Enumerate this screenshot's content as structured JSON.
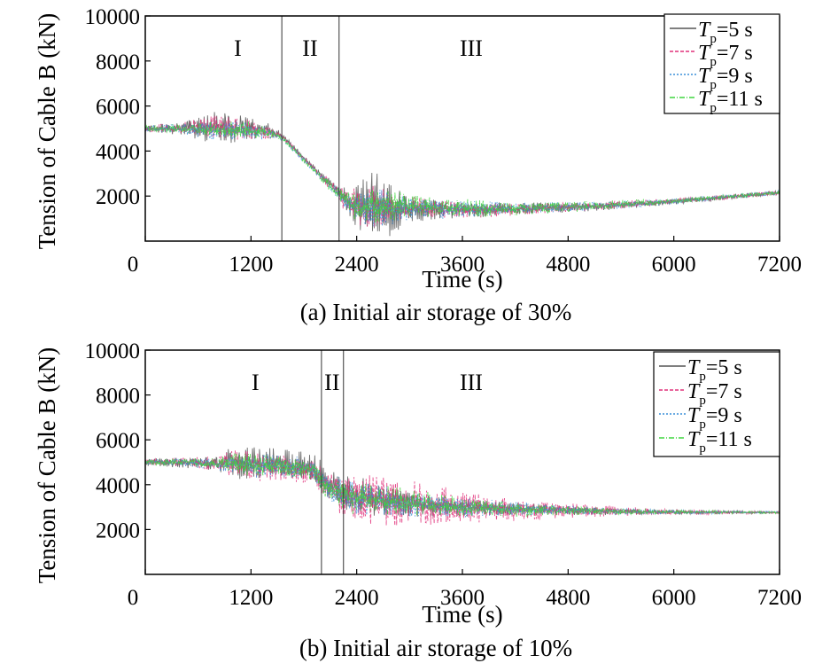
{
  "chart_data": [
    {
      "type": "line",
      "caption": "(a) Initial air storage of 30%",
      "xlabel": "Time (s)",
      "ylabel": "Tension of Cable B (kN)",
      "xlim": [
        0,
        7200
      ],
      "ylim": [
        0,
        10000
      ],
      "xticks": [
        0,
        1200,
        2400,
        3600,
        4800,
        6000,
        7200
      ],
      "yticks": [
        2000,
        4000,
        6000,
        8000,
        10000
      ],
      "grid": false,
      "legend_position": "top-right",
      "boundaries": [
        1550,
        2200
      ],
      "regions": [
        {
          "label": "I",
          "x": 1050
        },
        {
          "label": "II",
          "x": 1870
        },
        {
          "label": "III",
          "x": 3700
        }
      ],
      "series": [
        {
          "name": "T",
          "sub": "p",
          "suffix": "=5 s",
          "color": "#555555",
          "dash": "",
          "x": [
            0,
            400,
            800,
            1200,
            1400,
            1550,
            1800,
            2000,
            2200,
            2300,
            2400,
            2600,
            2800,
            3000,
            3600,
            4200,
            4800,
            5400,
            6000,
            6600,
            7200
          ],
          "y": [
            5000,
            5000,
            5100,
            5000,
            4900,
            4700,
            3700,
            2900,
            2200,
            1700,
            1500,
            1600,
            1500,
            1450,
            1400,
            1420,
            1480,
            1600,
            1750,
            1950,
            2150
          ],
          "amp": [
            150,
            250,
            700,
            500,
            300,
            100,
            100,
            150,
            300,
            700,
            900,
            1500,
            1100,
            500,
            350,
            250,
            200,
            150,
            120,
            100,
            80
          ]
        },
        {
          "name": "T",
          "sub": "p",
          "suffix": "=7 s",
          "color": "#e0307a",
          "dash": "4,2",
          "x": [
            0,
            400,
            800,
            1200,
            1400,
            1550,
            1800,
            2000,
            2200,
            2300,
            2400,
            2600,
            2800,
            3000,
            3600,
            4200,
            4800,
            5400,
            6000,
            6600,
            7200
          ],
          "y": [
            5000,
            5000,
            5050,
            4950,
            4850,
            4650,
            3650,
            2850,
            2150,
            1700,
            1500,
            1550,
            1500,
            1450,
            1400,
            1430,
            1500,
            1620,
            1760,
            1960,
            2150
          ],
          "amp": [
            140,
            220,
            550,
            450,
            280,
            100,
            100,
            150,
            280,
            600,
            800,
            900,
            700,
            450,
            350,
            250,
            200,
            150,
            120,
            100,
            80
          ]
        },
        {
          "name": "T",
          "sub": "p",
          "suffix": "=9 s",
          "color": "#3a8fd8",
          "dash": "2,2",
          "x": [
            0,
            400,
            800,
            1200,
            1400,
            1550,
            1800,
            2000,
            2200,
            2300,
            2400,
            2600,
            2800,
            3000,
            3600,
            4200,
            4800,
            5400,
            6000,
            6600,
            7200
          ],
          "y": [
            5000,
            5000,
            4950,
            4900,
            4800,
            4600,
            3600,
            2800,
            2100,
            1650,
            1500,
            1500,
            1500,
            1480,
            1420,
            1440,
            1500,
            1620,
            1760,
            1960,
            2150
          ],
          "amp": [
            120,
            200,
            400,
            380,
            250,
            100,
            100,
            150,
            260,
            500,
            700,
            800,
            650,
            450,
            350,
            250,
            200,
            150,
            120,
            100,
            80
          ]
        },
        {
          "name": "T",
          "sub": "p",
          "suffix": "=11 s",
          "color": "#3ed63e",
          "dash": "6,2,1,2",
          "x": [
            0,
            400,
            800,
            1200,
            1400,
            1550,
            1800,
            2000,
            2200,
            2300,
            2400,
            2600,
            2800,
            3000,
            3600,
            4200,
            4800,
            5400,
            6000,
            6600,
            7200
          ],
          "y": [
            5000,
            5000,
            4950,
            4900,
            4800,
            4600,
            3600,
            2800,
            2100,
            1650,
            1500,
            1500,
            1550,
            1500,
            1450,
            1450,
            1520,
            1630,
            1770,
            1970,
            2150
          ],
          "amp": [
            120,
            180,
            350,
            350,
            230,
            100,
            100,
            150,
            260,
            500,
            650,
            700,
            650,
            500,
            380,
            270,
            210,
            160,
            120,
            100,
            80
          ]
        }
      ]
    },
    {
      "type": "line",
      "caption": "(b) Initial air storage of 10%",
      "xlabel": "Time (s)",
      "ylabel": "Tension of Cable B (kN)",
      "xlim": [
        0,
        7200
      ],
      "ylim": [
        0,
        10000
      ],
      "xticks": [
        0,
        1200,
        2400,
        3600,
        4800,
        6000,
        7200
      ],
      "yticks": [
        2000,
        4000,
        6000,
        8000,
        10000
      ],
      "grid": false,
      "legend_position": "top-right",
      "boundaries": [
        2000,
        2250
      ],
      "regions": [
        {
          "label": "I",
          "x": 1250
        },
        {
          "label": "II",
          "x": 2120
        },
        {
          "label": "III",
          "x": 3700
        }
      ],
      "series": [
        {
          "name": "T",
          "sub": "p",
          "suffix": "=5 s",
          "color": "#555555",
          "dash": "",
          "x": [
            0,
            400,
            800,
            1000,
            1200,
            1600,
            1900,
            2000,
            2100,
            2250,
            2400,
            2800,
            3200,
            3600,
            4200,
            4800,
            5400,
            6000,
            6600,
            7200
          ],
          "y": [
            5000,
            5000,
            4950,
            5000,
            4950,
            4900,
            4700,
            4300,
            3900,
            3600,
            3500,
            3300,
            3100,
            3000,
            2900,
            2850,
            2800,
            2780,
            2770,
            2760
          ],
          "amp": [
            150,
            200,
            300,
            700,
            650,
            600,
            600,
            700,
            700,
            700,
            800,
            600,
            450,
            350,
            250,
            180,
            130,
            90,
            60,
            40
          ]
        },
        {
          "name": "T",
          "sub": "p",
          "suffix": "=7 s",
          "color": "#e0307a",
          "dash": "4,2",
          "x": [
            0,
            400,
            800,
            1000,
            1200,
            1600,
            1900,
            2000,
            2100,
            2250,
            2400,
            2800,
            3200,
            3600,
            4200,
            4800,
            5400,
            6000,
            6600,
            7200
          ],
          "y": [
            5000,
            5000,
            4900,
            4900,
            4800,
            4800,
            4650,
            4250,
            3850,
            3500,
            3400,
            3200,
            3050,
            3000,
            2900,
            2850,
            2800,
            2780,
            2770,
            2760
          ],
          "amp": [
            140,
            180,
            300,
            550,
            600,
            550,
            500,
            600,
            700,
            800,
            1000,
            1100,
            900,
            650,
            450,
            300,
            200,
            120,
            70,
            40
          ]
        },
        {
          "name": "T",
          "sub": "p",
          "suffix": "=9 s",
          "color": "#3a8fd8",
          "dash": "2,2",
          "x": [
            0,
            400,
            800,
            1000,
            1200,
            1600,
            1900,
            2000,
            2100,
            2250,
            2400,
            2800,
            3200,
            3600,
            4200,
            4800,
            5400,
            6000,
            6600,
            7200
          ],
          "y": [
            5000,
            5000,
            4950,
            4950,
            4850,
            4800,
            4650,
            4250,
            3800,
            3500,
            3400,
            3250,
            3100,
            3000,
            2900,
            2850,
            2800,
            2780,
            2770,
            2760
          ],
          "amp": [
            120,
            160,
            250,
            450,
            500,
            450,
            450,
            500,
            600,
            650,
            700,
            600,
            500,
            400,
            300,
            200,
            140,
            90,
            60,
            40
          ]
        },
        {
          "name": "T",
          "sub": "p",
          "suffix": "=11 s",
          "color": "#3ed63e",
          "dash": "6,2,1,2",
          "x": [
            0,
            400,
            800,
            1000,
            1200,
            1600,
            1900,
            2000,
            2100,
            2250,
            2400,
            2800,
            3200,
            3600,
            4200,
            4800,
            5400,
            6000,
            6600,
            7200
          ],
          "y": [
            5000,
            5000,
            4950,
            4950,
            4850,
            4800,
            4650,
            4250,
            3800,
            3500,
            3400,
            3250,
            3100,
            3000,
            2900,
            2850,
            2800,
            2780,
            2770,
            2760
          ],
          "amp": [
            120,
            150,
            220,
            400,
            450,
            400,
            400,
            450,
            550,
            600,
            650,
            600,
            500,
            400,
            300,
            200,
            140,
            90,
            60,
            40
          ]
        }
      ]
    }
  ]
}
